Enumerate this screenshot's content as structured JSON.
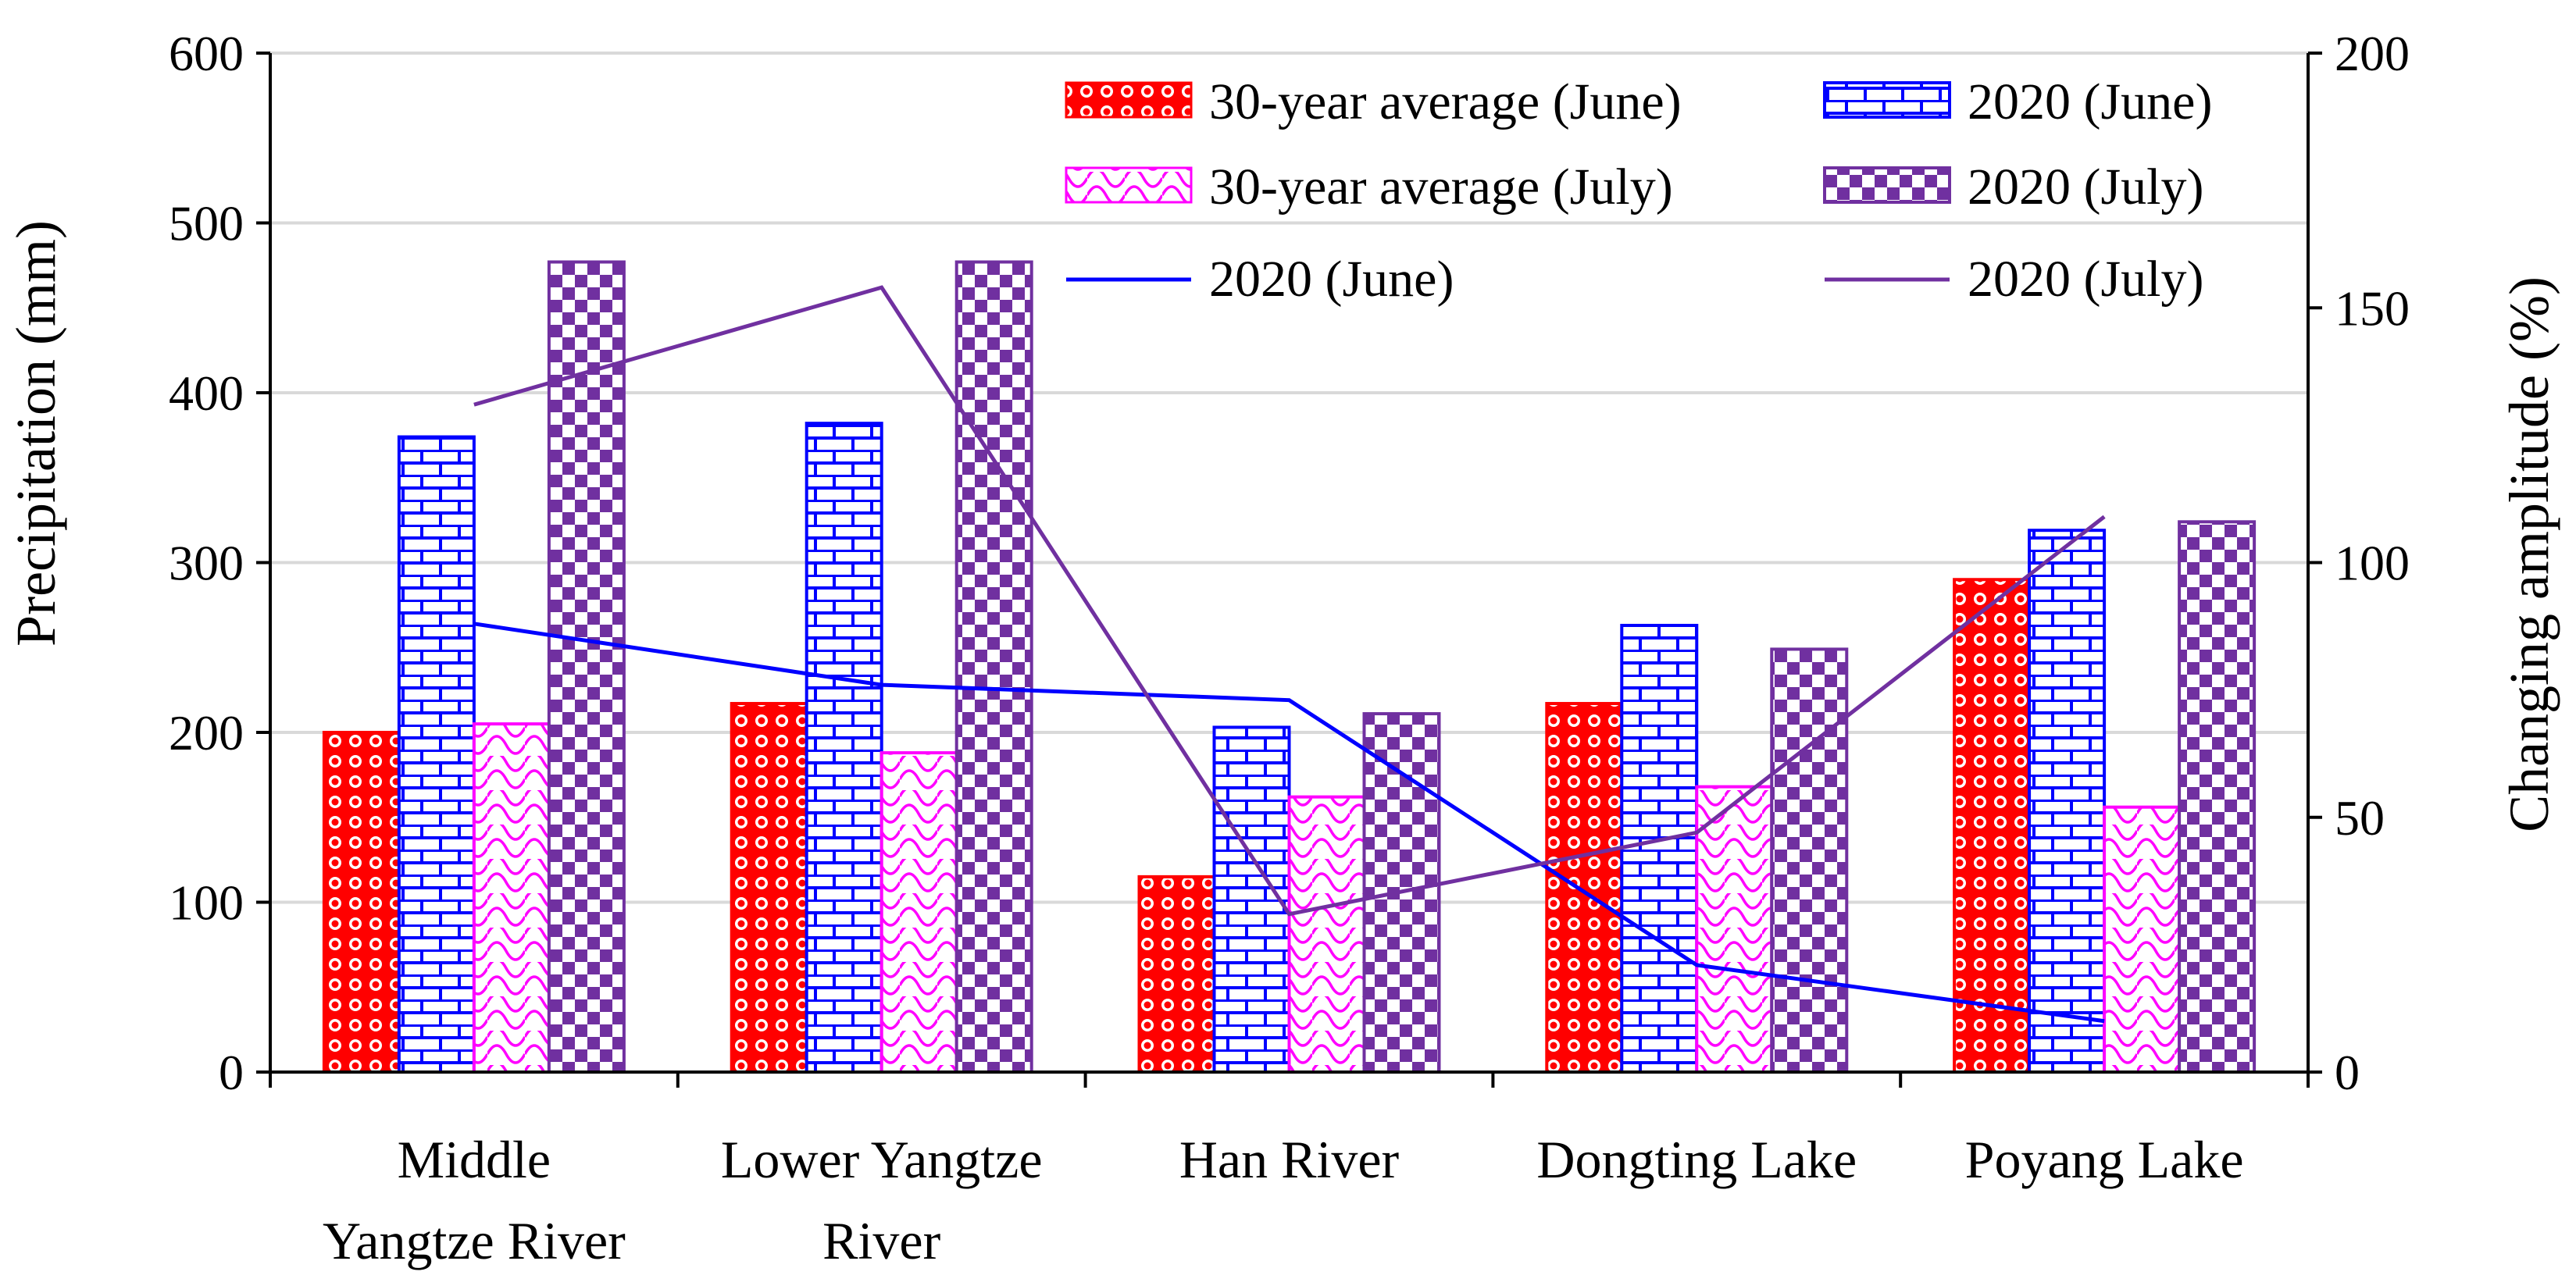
{
  "chart_data": {
    "type": "bar",
    "categories": [
      [
        "Middle",
        "Yangtze River"
      ],
      [
        "Lower Yangtze",
        "River"
      ],
      [
        "Han River"
      ],
      [
        "Dongting Lake"
      ],
      [
        "Poyang Lake"
      ]
    ],
    "ylabel": "Precipitation (mm)",
    "y2label": "Changing amplitude (%)",
    "ylim": [
      0,
      600
    ],
    "y2lim": [
      0,
      200
    ],
    "yticks": [
      "0",
      "100",
      "200",
      "300",
      "400",
      "500",
      "600"
    ],
    "y2ticks": [
      "0",
      "50",
      "100",
      "150",
      "200"
    ],
    "grid": true,
    "legend_position": "top-right",
    "series": [
      {
        "name": "30-year average (June)",
        "type": "bar",
        "axis": "left",
        "pattern": "dots",
        "color": "#ff0000",
        "values": [
          200,
          217,
          115,
          217,
          290
        ]
      },
      {
        "name": "2020 (June)",
        "type": "bar",
        "axis": "left",
        "pattern": "bricks",
        "color": "#0000ff",
        "values": [
          374,
          382,
          203,
          263,
          319
        ]
      },
      {
        "name": "30-year average (July)",
        "type": "bar",
        "axis": "left",
        "pattern": "waves",
        "color": "#ff00ff",
        "values": [
          205,
          188,
          162,
          168,
          156
        ]
      },
      {
        "name": "2020 (July)",
        "type": "bar",
        "axis": "left",
        "pattern": "checker",
        "color": "#7030a0",
        "values": [
          477,
          477,
          211,
          249,
          324
        ]
      },
      {
        "name": "2020 (June)",
        "type": "line",
        "axis": "right",
        "color": "#0000ff",
        "values": [
          88,
          76,
          73,
          21,
          10
        ]
      },
      {
        "name": "2020 (July)",
        "type": "line",
        "axis": "right",
        "color": "#7030a0",
        "values": [
          131,
          154,
          31,
          47,
          109
        ]
      }
    ]
  }
}
